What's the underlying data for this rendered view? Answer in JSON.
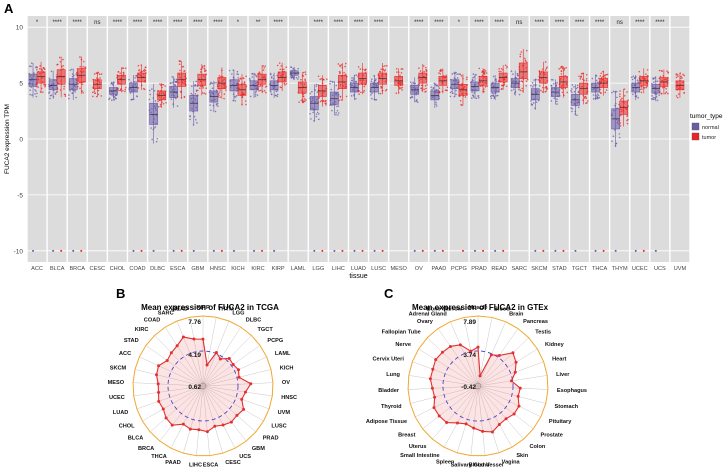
{
  "panel_labels": {
    "a": "A",
    "b": "B",
    "c": "C"
  },
  "chart_data": [
    {
      "type": "box",
      "panel": "A",
      "xlabel": "tissue",
      "ylabel": "FUCA2 expression TPM",
      "ylim": [
        -11,
        11
      ],
      "yticks": [
        -10,
        -5,
        0,
        5,
        10
      ],
      "legend": {
        "title": "tumor_type",
        "placement": "right",
        "entries": [
          {
            "name": "normal",
            "color": "#6a5aa8"
          },
          {
            "name": "tumor",
            "color": "#ee2424"
          }
        ]
      },
      "tissues": [
        {
          "name": "ACC",
          "sig": "*",
          "normal": 5.3,
          "tumor": 5.6,
          "nr": [
            4.7,
            5.8
          ],
          "tr": [
            5.0,
            6.0
          ],
          "nOut": true,
          "tOut": false
        },
        {
          "name": "BLCA",
          "sig": "****",
          "normal": 4.8,
          "tumor": 5.6,
          "nr": [
            4.4,
            5.3
          ],
          "tr": [
            4.9,
            6.2
          ],
          "nOut": true,
          "tOut": true
        },
        {
          "name": "BRCA",
          "sig": "****",
          "normal": 4.9,
          "tumor": 5.7,
          "nr": [
            4.4,
            5.4
          ],
          "tr": [
            5.1,
            6.3
          ],
          "nOut": true,
          "tOut": true
        },
        {
          "name": "CESC",
          "sig": "ns",
          "normal": null,
          "tumor": 4.9,
          "nr": null,
          "tr": [
            4.5,
            5.3
          ],
          "nOut": false,
          "tOut": false
        },
        {
          "name": "CHOL",
          "sig": "****",
          "normal": 4.3,
          "tumor": 5.3,
          "nr": [
            4.0,
            4.6
          ],
          "tr": [
            4.9,
            5.7
          ],
          "nOut": false,
          "tOut": false
        },
        {
          "name": "COAD",
          "sig": "****",
          "normal": 4.6,
          "tumor": 5.5,
          "nr": [
            4.2,
            5.0
          ],
          "tr": [
            5.1,
            5.9
          ],
          "nOut": true,
          "tOut": true
        },
        {
          "name": "DLBC",
          "sig": "****",
          "normal": 2.2,
          "tumor": 3.9,
          "nr": [
            1.3,
            3.2
          ],
          "tr": [
            3.5,
            4.3
          ],
          "nOut": true,
          "tOut": false
        },
        {
          "name": "ESCA",
          "sig": "****",
          "normal": 4.2,
          "tumor": 5.3,
          "nr": [
            3.7,
            4.7
          ],
          "tr": [
            4.7,
            5.9
          ],
          "nOut": true,
          "tOut": true
        },
        {
          "name": "GBM",
          "sig": "****",
          "normal": 3.2,
          "tumor": 5.3,
          "nr": [
            2.5,
            3.9
          ],
          "tr": [
            4.8,
            5.8
          ],
          "nOut": true,
          "tOut": false
        },
        {
          "name": "HNSC",
          "sig": "****",
          "normal": 3.8,
          "tumor": 5.0,
          "nr": [
            3.3,
            4.3
          ],
          "tr": [
            4.5,
            5.5
          ],
          "nOut": true,
          "tOut": true
        },
        {
          "name": "KICH",
          "sig": "*",
          "normal": 4.8,
          "tumor": 4.4,
          "nr": [
            4.3,
            5.3
          ],
          "tr": [
            3.9,
            4.9
          ],
          "nOut": true,
          "tOut": false
        },
        {
          "name": "KIRC",
          "sig": "**",
          "normal": 4.8,
          "tumor": 5.3,
          "nr": [
            4.4,
            5.2
          ],
          "tr": [
            4.9,
            5.8
          ],
          "nOut": true,
          "tOut": true
        },
        {
          "name": "KIRP",
          "sig": "****",
          "normal": 4.8,
          "tumor": 5.5,
          "nr": [
            4.4,
            5.2
          ],
          "tr": [
            5.1,
            6.0
          ],
          "nOut": true,
          "tOut": false
        },
        {
          "name": "LAML",
          "sig": "",
          "normal": 5.9,
          "tumor": 4.6,
          "nr": [
            5.7,
            6.1
          ],
          "tr": [
            4.1,
            5.1
          ],
          "nOut": false,
          "tOut": false
        },
        {
          "name": "LGG",
          "sig": "****",
          "normal": 3.2,
          "tumor": 4.3,
          "nr": [
            2.6,
            3.8
          ],
          "tr": [
            3.8,
            4.8
          ],
          "nOut": true,
          "tOut": true
        },
        {
          "name": "LIHC",
          "sig": "****",
          "normal": 3.6,
          "tumor": 5.1,
          "nr": [
            3.1,
            4.2
          ],
          "tr": [
            4.5,
            5.7
          ],
          "nOut": true,
          "tOut": true
        },
        {
          "name": "LUAD",
          "sig": "****",
          "normal": 4.6,
          "tumor": 5.4,
          "nr": [
            4.2,
            5.0
          ],
          "tr": [
            4.9,
            5.9
          ],
          "nOut": true,
          "tOut": true
        },
        {
          "name": "LUSC",
          "sig": "****",
          "normal": 4.6,
          "tumor": 5.4,
          "nr": [
            4.2,
            5.0
          ],
          "tr": [
            4.9,
            5.9
          ],
          "nOut": true,
          "tOut": true
        },
        {
          "name": "MESO",
          "sig": "",
          "normal": null,
          "tumor": 5.2,
          "nr": null,
          "tr": [
            4.8,
            5.6
          ],
          "nOut": false,
          "tOut": false
        },
        {
          "name": "OV",
          "sig": "****",
          "normal": 4.4,
          "tumor": 5.5,
          "nr": [
            4.0,
            4.8
          ],
          "tr": [
            5.0,
            5.9
          ],
          "nOut": true,
          "tOut": true
        },
        {
          "name": "PAAD",
          "sig": "****",
          "normal": 3.9,
          "tumor": 5.2,
          "nr": [
            3.5,
            4.3
          ],
          "tr": [
            4.8,
            5.6
          ],
          "nOut": true,
          "tOut": true
        },
        {
          "name": "PCPG",
          "sig": "*",
          "normal": 4.9,
          "tumor": 4.4,
          "nr": [
            4.5,
            5.3
          ],
          "tr": [
            3.9,
            4.9
          ],
          "nOut": false,
          "tOut": true
        },
        {
          "name": "PRAD",
          "sig": "****",
          "normal": 4.7,
          "tumor": 5.2,
          "nr": [
            4.3,
            5.1
          ],
          "tr": [
            4.8,
            5.6
          ],
          "nOut": true,
          "tOut": true
        },
        {
          "name": "READ",
          "sig": "****",
          "normal": 4.6,
          "tumor": 5.5,
          "nr": [
            4.2,
            5.0
          ],
          "tr": [
            5.1,
            5.9
          ],
          "nOut": true,
          "tOut": true
        },
        {
          "name": "SARC",
          "sig": "ns",
          "normal": 5.0,
          "tumor": 6.0,
          "nr": [
            4.6,
            5.4
          ],
          "tr": [
            5.4,
            6.8
          ],
          "nOut": false,
          "tOut": false
        },
        {
          "name": "SKCM",
          "sig": "****",
          "normal": 4.0,
          "tumor": 5.5,
          "nr": [
            3.5,
            4.5
          ],
          "tr": [
            5.0,
            6.0
          ],
          "nOut": true,
          "tOut": true
        },
        {
          "name": "STAD",
          "sig": "****",
          "normal": 4.2,
          "tumor": 5.1,
          "nr": [
            3.8,
            4.6
          ],
          "tr": [
            4.6,
            5.6
          ],
          "nOut": true,
          "tOut": true
        },
        {
          "name": "TGCT",
          "sig": "****",
          "normal": 3.5,
          "tumor": 4.5,
          "nr": [
            3.0,
            4.0
          ],
          "tr": [
            4.0,
            5.0
          ],
          "nOut": true,
          "tOut": false
        },
        {
          "name": "THCA",
          "sig": "****",
          "normal": 4.6,
          "tumor": 5.0,
          "nr": [
            4.2,
            5.0
          ],
          "tr": [
            4.6,
            5.4
          ],
          "nOut": true,
          "tOut": true
        },
        {
          "name": "THYM",
          "sig": "ns",
          "normal": 1.8,
          "tumor": 2.8,
          "nr": [
            0.9,
            2.7
          ],
          "tr": [
            2.2,
            3.4
          ],
          "nOut": true,
          "tOut": false
        },
        {
          "name": "UCEC",
          "sig": "****",
          "normal": 4.6,
          "tumor": 5.2,
          "nr": [
            4.2,
            5.0
          ],
          "tr": [
            4.8,
            5.6
          ],
          "nOut": true,
          "tOut": true
        },
        {
          "name": "UCS",
          "sig": "****",
          "normal": 4.5,
          "tumor": 5.1,
          "nr": [
            4.1,
            4.9
          ],
          "tr": [
            4.7,
            5.5
          ],
          "nOut": true,
          "tOut": false
        },
        {
          "name": "UVM",
          "sig": "",
          "normal": null,
          "tumor": 4.8,
          "nr": null,
          "tr": [
            4.4,
            5.2
          ],
          "nOut": false,
          "tOut": false
        }
      ]
    },
    {
      "type": "radar",
      "panel": "B",
      "title": "Mean expression of FUCA2 in TCGA",
      "scale_labels": [
        "7.76",
        "4.19",
        "0.62"
      ],
      "scale_values": [
        7.76,
        4.19,
        0.62
      ],
      "categories": [
        "KIRP",
        "THYM",
        "LGG",
        "DLBC",
        "TGCT",
        "PCPG",
        "LAML",
        "KICH",
        "OV",
        "HNSC",
        "UVM",
        "LUSC",
        "PRAD",
        "GBM",
        "UCS",
        "CESC",
        "ESCA",
        "LIHC",
        "PAAD",
        "THCA",
        "BRCA",
        "BLCA",
        "CHOL",
        "LUAD",
        "UCEC",
        "MESO",
        "SKCM",
        "ACC",
        "STAD",
        "KIRC",
        "COAD",
        "SARC",
        "READ"
      ],
      "values": [
        5.4,
        2.8,
        4.3,
        3.9,
        4.5,
        4.4,
        4.6,
        4.4,
        5.5,
        5.0,
        4.8,
        5.4,
        5.2,
        5.3,
        5.1,
        4.9,
        5.3,
        5.1,
        5.2,
        5.0,
        5.7,
        5.6,
        5.3,
        5.4,
        5.2,
        5.2,
        5.5,
        5.6,
        5.1,
        5.3,
        5.5,
        6.0,
        5.5
      ]
    },
    {
      "type": "radar",
      "panel": "C",
      "title": "Mean expression of FUCA2 in GTEx",
      "scale_labels": [
        "7.89",
        "3.74",
        "-0.42"
      ],
      "scale_values": [
        7.89,
        3.74,
        -0.42
      ],
      "categories": [
        "Muscle",
        "Blood",
        "Brain",
        "Pancreas",
        "Testis",
        "Kidney",
        "Heart",
        "Liver",
        "Esophagus",
        "Stomach",
        "Pituitary",
        "Prostate",
        "Colon",
        "Skin",
        "Vagina",
        "Blood Vessel",
        "Salivary Gland",
        "Spleen",
        "Small Intestine",
        "Uterus",
        "Breast",
        "Adipose Tissue",
        "Thyroid",
        "Bladder",
        "Lung",
        "Cervix Uteri",
        "Nerve",
        "Fallopian Tube",
        "Ovary",
        "Adrenal Gland",
        "Bone Marrow"
      ],
      "values": [
        4.2,
        0.8,
        3.6,
        4.0,
        5.3,
        4.9,
        4.3,
        3.6,
        4.6,
        4.5,
        5.0,
        5.0,
        4.7,
        4.8,
        5.3,
        5.0,
        4.6,
        4.3,
        4.6,
        5.3,
        5.4,
        5.4,
        4.9,
        5.0,
        5.3,
        5.3,
        5.5,
        5.4,
        5.3,
        4.9,
        3.8
      ]
    }
  ]
}
